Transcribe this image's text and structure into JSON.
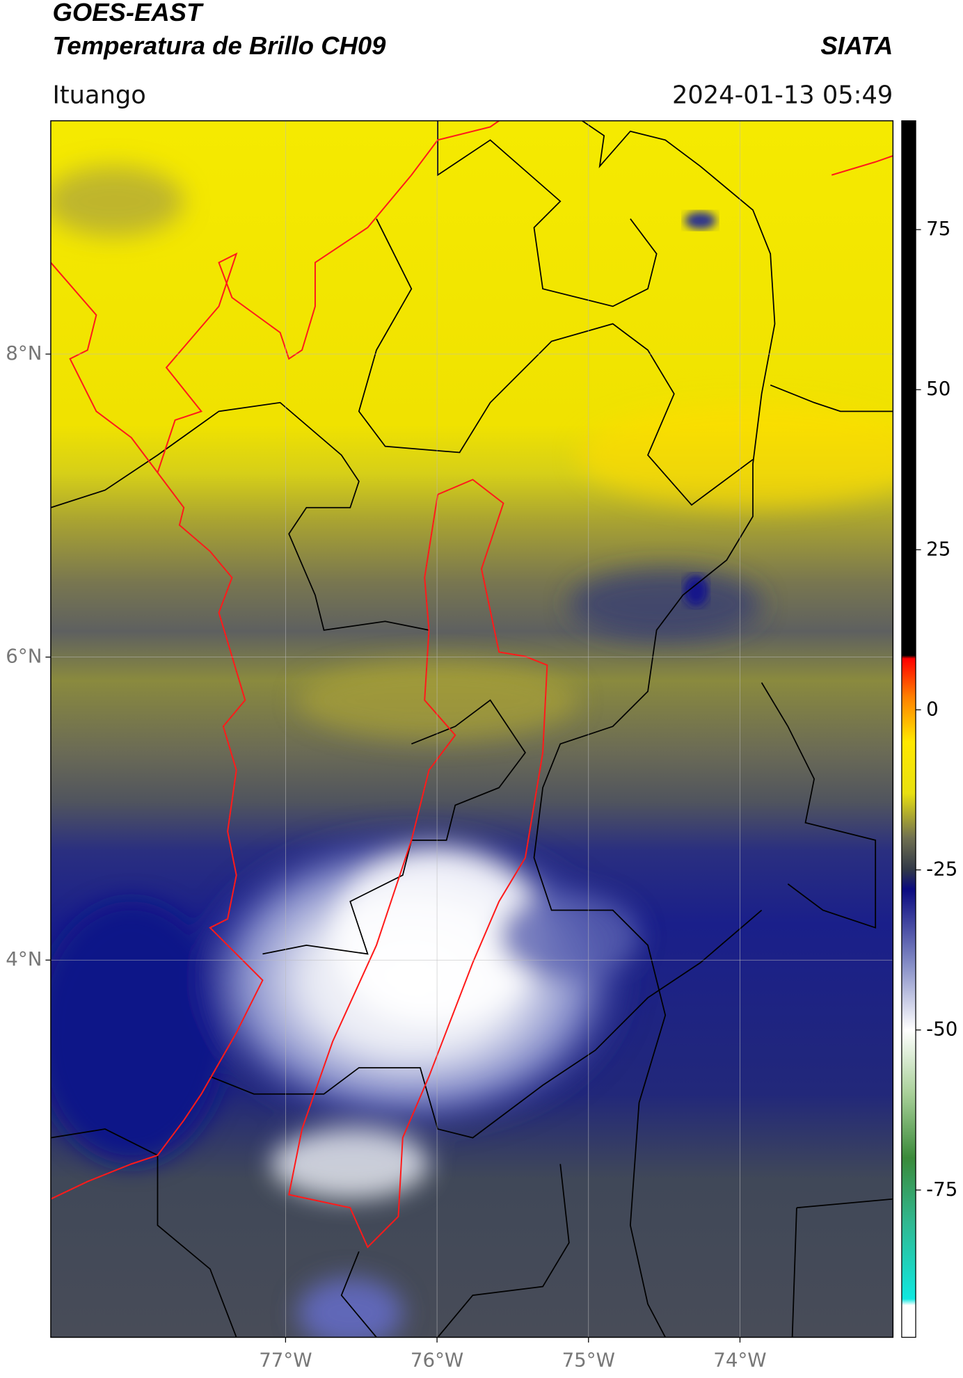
{
  "map": {
    "type": "map",
    "title": "GOES-EAST",
    "subtitle": "Temperatura de Brillo CH09",
    "source": "SIATA",
    "location": "Ituango",
    "datetime": "2024-01-13 05:49",
    "xlim": [
      -78.55,
      -72.99
    ],
    "ylim": [
      1.51,
      9.54
    ],
    "xticks": [
      {
        "value": -77,
        "label": "77°W"
      },
      {
        "value": -76,
        "label": "76°W"
      },
      {
        "value": -75,
        "label": "75°W"
      },
      {
        "value": -74,
        "label": "74°W"
      }
    ],
    "yticks": [
      {
        "value": 8,
        "label": "8°N"
      },
      {
        "value": 6,
        "label": "6°N"
      },
      {
        "value": 4,
        "label": "4°N"
      }
    ],
    "grid": true,
    "colorbar": {
      "lim": [
        -98,
        92
      ],
      "ticks": [
        75,
        50,
        25,
        0,
        -25,
        -50,
        -75
      ],
      "stops": [
        {
          "value": -98,
          "color": "#ffffff"
        },
        {
          "value": -93,
          "color": "#ffffff"
        },
        {
          "value": -92,
          "color": "#10e8e0"
        },
        {
          "value": -80,
          "color": "#30b890"
        },
        {
          "value": -70,
          "color": "#3a8a3a"
        },
        {
          "value": -60,
          "color": "#a8d098"
        },
        {
          "value": -50,
          "color": "#ffffff"
        },
        {
          "value": -40,
          "color": "#8890c8"
        },
        {
          "value": -28,
          "color": "#0a0a80"
        },
        {
          "value": -25,
          "color": "#303848"
        },
        {
          "value": -20,
          "color": "#707050"
        },
        {
          "value": -13,
          "color": "#e8e010"
        },
        {
          "value": -5,
          "color": "#ffe800"
        },
        {
          "value": 2,
          "color": "#ff8000"
        },
        {
          "value": 8,
          "color": "#ff0000"
        },
        {
          "value": 8.5,
          "color": "#000000"
        },
        {
          "value": 92,
          "color": "#000000"
        }
      ]
    }
  }
}
